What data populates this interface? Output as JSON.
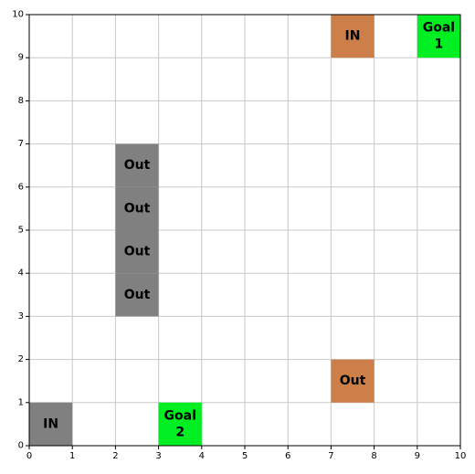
{
  "board": {
    "cols": 10,
    "rows": 10,
    "x_ticks": [
      "0",
      "1",
      "2",
      "3",
      "4",
      "5",
      "6",
      "7",
      "8",
      "9",
      "10"
    ],
    "y_ticks": [
      "0",
      "1",
      "2",
      "3",
      "4",
      "5",
      "6",
      "7",
      "8",
      "9",
      "10"
    ]
  },
  "colors": {
    "grid": "#c8c8c8",
    "frame": "#000000",
    "gray": "#808080",
    "orange": "#cd7f4a",
    "green": "#00ee22"
  },
  "cells": [
    {
      "name": "cell-in-agent1",
      "x": 7,
      "y": 9,
      "label": [
        "IN"
      ],
      "color": "orange"
    },
    {
      "name": "cell-goal-1",
      "x": 9,
      "y": 9,
      "label": [
        "Goal",
        "1"
      ],
      "color": "green"
    },
    {
      "name": "cell-out-1",
      "x": 2,
      "y": 6,
      "label": [
        "Out"
      ],
      "color": "gray"
    },
    {
      "name": "cell-out-2",
      "x": 2,
      "y": 5,
      "label": [
        "Out"
      ],
      "color": "gray"
    },
    {
      "name": "cell-out-3",
      "x": 2,
      "y": 4,
      "label": [
        "Out"
      ],
      "color": "gray"
    },
    {
      "name": "cell-out-4",
      "x": 2,
      "y": 3,
      "label": [
        "Out"
      ],
      "color": "gray"
    },
    {
      "name": "cell-out-agent1",
      "x": 7,
      "y": 1,
      "label": [
        "Out"
      ],
      "color": "orange"
    },
    {
      "name": "cell-in-agent2",
      "x": 0,
      "y": 0,
      "label": [
        "IN"
      ],
      "color": "gray"
    },
    {
      "name": "cell-goal-2",
      "x": 3,
      "y": 0,
      "label": [
        "Goal",
        "2"
      ],
      "color": "green"
    }
  ]
}
